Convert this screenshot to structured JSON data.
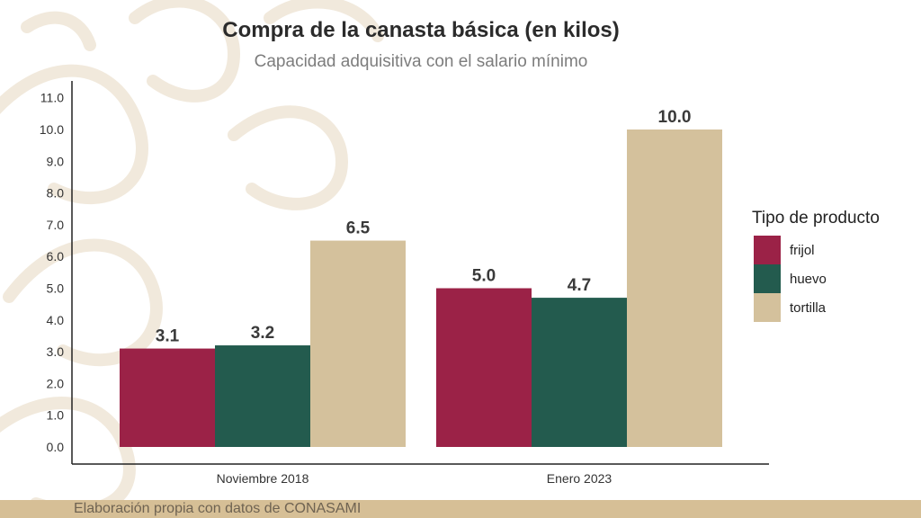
{
  "header": {
    "title": "Compra de la canasta básica (en kilos)",
    "subtitle": "Capacidad adquisitiva con el salario mínimo"
  },
  "legend": {
    "title": "Tipo de producto",
    "items": [
      {
        "label": "frijol",
        "color": "#9b2247"
      },
      {
        "label": "huevo",
        "color": "#235b4e"
      },
      {
        "label": "tortilla",
        "color": "#d4c19c"
      }
    ]
  },
  "footer": {
    "source": "Elaboración propia con datos de CONASAMI",
    "bar_color": "#d6bf96"
  },
  "chart_data": {
    "type": "bar",
    "title": "Compra de la canasta básica (en kilos)",
    "subtitle": "Capacidad adquisitiva con el salario mínimo",
    "categories": [
      "Noviembre 2018",
      "Enero 2023"
    ],
    "series": [
      {
        "name": "frijol",
        "color": "#9b2247",
        "values": [
          3.1,
          5.0
        ],
        "labels": [
          "3.1",
          "5.0"
        ]
      },
      {
        "name": "huevo",
        "color": "#235b4e",
        "values": [
          3.2,
          4.7
        ],
        "labels": [
          "3.2",
          "4.7"
        ]
      },
      {
        "name": "tortilla",
        "color": "#d4c19c",
        "values": [
          6.5,
          10.0
        ],
        "labels": [
          "6.5",
          "10.0"
        ]
      }
    ],
    "yticks": [
      "0.0",
      "1.0",
      "2.0",
      "3.0",
      "4.0",
      "5.0",
      "6.0",
      "7.0",
      "8.0",
      "9.0",
      "10.0",
      "11.0"
    ],
    "ylim": [
      0,
      11
    ],
    "xlabel": "",
    "ylabel": "",
    "grid": false,
    "legend_position": "right"
  }
}
